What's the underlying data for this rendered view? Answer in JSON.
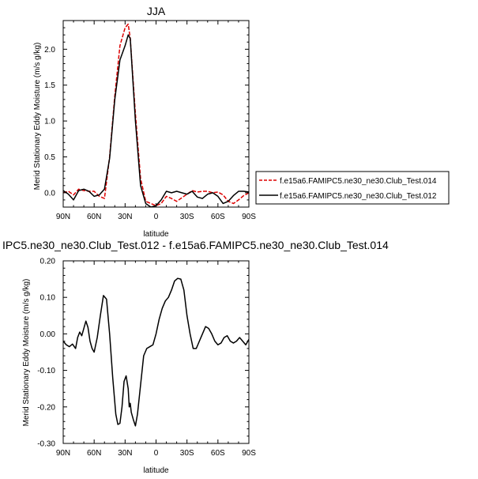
{
  "chart_data": [
    {
      "type": "line",
      "title": "JJA",
      "xlabel": "latitude",
      "ylabel": "Merid Stationary Eddy Moisture (m/s g/kg)",
      "x_tick_labels": [
        "90N",
        "60N",
        "30N",
        "0",
        "30S",
        "60S",
        "90S"
      ],
      "x_tick_values": [
        90,
        60,
        30,
        0,
        -30,
        -60,
        -90
      ],
      "y_tick_labels": [
        "0.0",
        "0.5",
        "1.0",
        "1.5",
        "2.0"
      ],
      "y_tick_values": [
        0.0,
        0.5,
        1.0,
        1.5,
        2.0
      ],
      "xlim": [
        90,
        -90
      ],
      "ylim": [
        -0.2,
        2.4
      ],
      "x": [
        90,
        85,
        80,
        75,
        70,
        65,
        60,
        55,
        50,
        45,
        40,
        35,
        30,
        27,
        25,
        20,
        15,
        10,
        5,
        0,
        -5,
        -10,
        -15,
        -20,
        -25,
        -30,
        -35,
        -40,
        -45,
        -50,
        -55,
        -60,
        -65,
        -70,
        -75,
        -80,
        -85,
        -90
      ],
      "series": [
        {
          "name": "f.e15a6.FAMIPC5.ne30_ne30.Club_Test.014",
          "color": "#dd0000",
          "dash": "dashed",
          "values": [
            0.0,
            0.02,
            -0.03,
            0.05,
            0.03,
            0.02,
            0.02,
            -0.05,
            -0.08,
            0.5,
            1.35,
            2.05,
            2.3,
            2.35,
            2.15,
            1.1,
            0.2,
            -0.12,
            -0.15,
            -0.18,
            -0.15,
            -0.05,
            -0.08,
            -0.12,
            -0.07,
            -0.02,
            0.03,
            0.01,
            0.02,
            0.02,
            0.0,
            0.01,
            -0.03,
            -0.12,
            -0.15,
            -0.1,
            -0.04,
            0.0
          ]
        },
        {
          "name": "f.e15a6.FAMIPC5.ne30_ne30.Club_Test.012",
          "color": "#000000",
          "dash": "solid",
          "values": [
            0.03,
            -0.02,
            -0.1,
            0.03,
            0.05,
            0.02,
            -0.05,
            -0.03,
            0.05,
            0.48,
            1.3,
            1.85,
            2.05,
            2.2,
            2.15,
            1.0,
            0.1,
            -0.15,
            -0.2,
            -0.18,
            -0.1,
            0.02,
            0.0,
            0.02,
            0.0,
            -0.02,
            0.02,
            -0.06,
            -0.08,
            -0.02,
            0.0,
            -0.05,
            -0.15,
            -0.12,
            -0.04,
            0.02,
            0.02,
            0.01
          ]
        }
      ]
    },
    {
      "type": "line",
      "title": "IPC5.ne30_ne30.Club_Test.012 - f.e15a6.FAMIPC5.ne30_ne30.Club_Test.014",
      "xlabel": "latitude",
      "ylabel": "Merid Stationary Eddy Moisture (m/s g/kg)",
      "x_tick_labels": [
        "90N",
        "60N",
        "30N",
        "0",
        "30S",
        "60S",
        "90S"
      ],
      "x_tick_values": [
        90,
        60,
        30,
        0,
        -30,
        -60,
        -90
      ],
      "y_tick_labels": [
        "-0.30",
        "-0.20",
        "-0.10",
        "0.00",
        "0.10",
        "0.20"
      ],
      "y_tick_values": [
        -0.3,
        -0.2,
        -0.1,
        0.0,
        0.1,
        0.2
      ],
      "xlim": [
        90,
        -90
      ],
      "ylim": [
        -0.3,
        0.2
      ],
      "x": [
        90,
        87,
        84,
        81,
        78,
        76,
        74,
        72,
        70,
        68,
        66,
        64,
        62,
        60,
        57,
        54,
        51,
        48,
        45,
        42,
        39,
        37,
        35,
        33,
        31,
        29,
        27,
        26,
        25,
        24,
        22,
        20,
        18,
        15,
        12,
        9,
        6,
        3,
        0,
        -3,
        -6,
        -9,
        -12,
        -15,
        -18,
        -21,
        -24,
        -27,
        -30,
        -33,
        -36,
        -39,
        -42,
        -45,
        -48,
        -51,
        -54,
        -57,
        -60,
        -63,
        -66,
        -69,
        -72,
        -75,
        -78,
        -81,
        -84,
        -87,
        -90
      ],
      "series": [
        {
          "name": "",
          "color": "#000000",
          "dash": "solid",
          "values": [
            -0.02,
            -0.03,
            -0.035,
            -0.028,
            -0.04,
            -0.01,
            0.005,
            -0.005,
            0.015,
            0.035,
            0.018,
            -0.02,
            -0.04,
            -0.05,
            -0.01,
            0.05,
            0.105,
            0.095,
            0.0,
            -0.12,
            -0.22,
            -0.248,
            -0.245,
            -0.2,
            -0.13,
            -0.115,
            -0.15,
            -0.2,
            -0.19,
            -0.215,
            -0.235,
            -0.252,
            -0.22,
            -0.14,
            -0.06,
            -0.04,
            -0.035,
            -0.03,
            0.0,
            0.04,
            0.07,
            0.09,
            0.1,
            0.12,
            0.145,
            0.152,
            0.15,
            0.12,
            0.05,
            0.0,
            -0.04,
            -0.04,
            -0.02,
            0.0,
            0.02,
            0.015,
            0.0,
            -0.02,
            -0.03,
            -0.025,
            -0.01,
            -0.005,
            -0.02,
            -0.025,
            -0.02,
            -0.01,
            -0.02,
            -0.03,
            -0.015
          ]
        }
      ]
    }
  ]
}
